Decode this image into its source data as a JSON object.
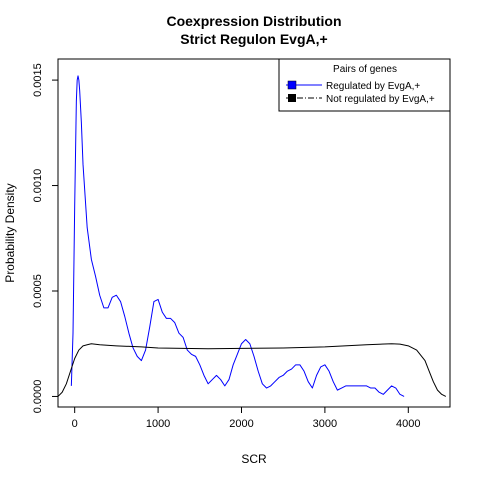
{
  "chart_data": {
    "type": "line",
    "title_line1": "Coexpression Distribution",
    "title_line2": "Strict Regulon EvgA,+",
    "xlabel": "SCR",
    "ylabel": "Probability Density",
    "xlim": [
      -200,
      4500
    ],
    "ylim": [
      -5e-05,
      0.0016
    ],
    "x_ticks": [
      {
        "value": 0,
        "label": "0"
      },
      {
        "value": 1000,
        "label": "1000"
      },
      {
        "value": 2000,
        "label": "2000"
      },
      {
        "value": 3000,
        "label": "3000"
      },
      {
        "value": 4000,
        "label": "4000"
      }
    ],
    "y_ticks": [
      {
        "value": 0,
        "label": "0.0000"
      },
      {
        "value": 0.0005,
        "label": "0.0005"
      },
      {
        "value": 0.001,
        "label": "0.0010"
      },
      {
        "value": 0.0015,
        "label": "0.0015"
      }
    ],
    "legend": {
      "title": "Pairs of genes",
      "position": "top-right",
      "entries": [
        "Regulated by  EvgA,+",
        "Not regulated by  EvgA,+"
      ]
    },
    "series": [
      {
        "name": "Regulated by  EvgA,+",
        "color": "#0000ff",
        "x": [
          -40,
          -20,
          0,
          20,
          30,
          40,
          50,
          60,
          80,
          100,
          150,
          200,
          250,
          300,
          350,
          400,
          450,
          500,
          550,
          600,
          650,
          700,
          750,
          800,
          850,
          900,
          950,
          1000,
          1050,
          1100,
          1150,
          1200,
          1250,
          1300,
          1350,
          1400,
          1450,
          1500,
          1550,
          1600,
          1650,
          1700,
          1750,
          1800,
          1850,
          1900,
          1950,
          2000,
          2050,
          2100,
          2150,
          2200,
          2250,
          2300,
          2350,
          2400,
          2450,
          2500,
          2550,
          2600,
          2650,
          2700,
          2750,
          2800,
          2850,
          2900,
          2950,
          3000,
          3050,
          3100,
          3150,
          3200,
          3250,
          3300,
          3350,
          3400,
          3450,
          3500,
          3550,
          3600,
          3650,
          3700,
          3750,
          3800,
          3850,
          3900,
          3950
        ],
        "y": [
          5e-05,
          0.0003,
          0.0009,
          0.0014,
          0.0015,
          0.00152,
          0.0015,
          0.00145,
          0.0013,
          0.0011,
          0.0008,
          0.00065,
          0.00057,
          0.00048,
          0.00042,
          0.00042,
          0.00047,
          0.00048,
          0.00045,
          0.00038,
          0.0003,
          0.00023,
          0.00019,
          0.00017,
          0.00022,
          0.00033,
          0.00045,
          0.00046,
          0.0004,
          0.00037,
          0.00037,
          0.00035,
          0.0003,
          0.00028,
          0.00022,
          0.0002,
          0.00019,
          0.00015,
          0.0001,
          6e-05,
          8e-05,
          0.0001,
          8e-05,
          5e-05,
          8e-05,
          0.00015,
          0.0002,
          0.00025,
          0.00027,
          0.00025,
          0.00019,
          0.00012,
          6e-05,
          4e-05,
          5e-05,
          7e-05,
          9e-05,
          0.0001,
          0.00012,
          0.00013,
          0.00015,
          0.00015,
          0.00012,
          7e-05,
          4e-05,
          0.0001,
          0.00014,
          0.00015,
          0.00012,
          7e-05,
          3e-05,
          4e-05,
          5e-05,
          5e-05,
          5e-05,
          5e-05,
          5e-05,
          5e-05,
          4e-05,
          4e-05,
          2e-05,
          1e-05,
          3e-05,
          5e-05,
          4e-05,
          1e-05,
          0.0
        ]
      },
      {
        "name": "Not regulated by  EvgA,+",
        "color": "#000000",
        "x": [
          -200,
          -150,
          -100,
          -50,
          0,
          50,
          100,
          150,
          200,
          300,
          500,
          800,
          1000,
          1300,
          1600,
          2000,
          2500,
          3000,
          3500,
          3800,
          3900,
          4000,
          4100,
          4200,
          4250,
          4300,
          4350,
          4400,
          4450
        ],
        "y": [
          0.0,
          2e-05,
          6e-05,
          0.00012,
          0.00018,
          0.00022,
          0.00024,
          0.000245,
          0.00025,
          0.000245,
          0.00024,
          0.000235,
          0.00023,
          0.000228,
          0.000226,
          0.000228,
          0.00023,
          0.000235,
          0.000245,
          0.00025,
          0.000248,
          0.00024,
          0.00022,
          0.00017,
          0.00012,
          7e-05,
          3e-05,
          1e-05,
          0.0
        ]
      }
    ]
  }
}
